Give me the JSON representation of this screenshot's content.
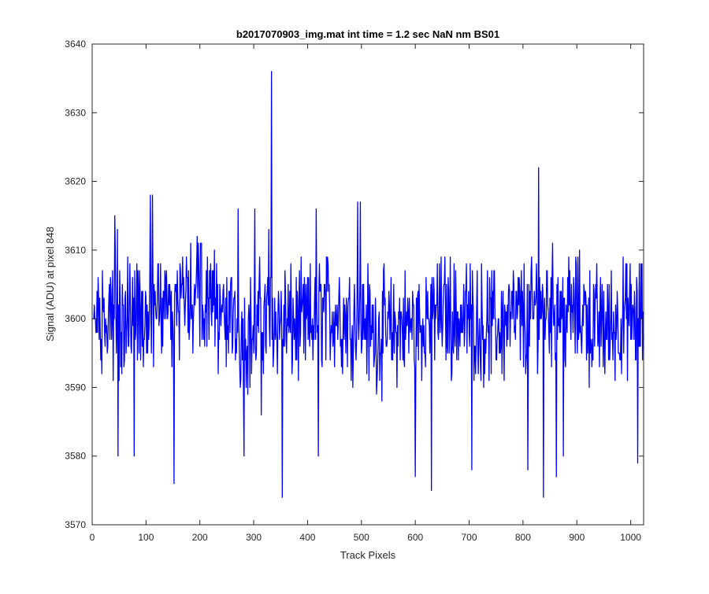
{
  "chart_data": {
    "type": "line",
    "title": "b2017070903_img.mat int time = 1.2 sec  NaN nm BS01",
    "xlabel": "Track Pixels",
    "ylabel": "Signal (ADU) at pixel 848",
    "xlim": [
      0,
      1024
    ],
    "ylim": [
      3570,
      3640
    ],
    "xticks": [
      0,
      100,
      200,
      300,
      400,
      500,
      600,
      700,
      800,
      900,
      1000
    ],
    "yticks": [
      3570,
      3580,
      3590,
      3600,
      3610,
      3620,
      3630,
      3640
    ],
    "grid": false,
    "series": [
      {
        "name": "",
        "color": "#0000ff",
        "x_start": 1,
        "x_step": 1,
        "baseline_values": [
          3600,
          3599,
          3602,
          3603,
          3601,
          3598,
          3600,
          3599,
          3601,
          3600,
          3598,
          3599,
          3601,
          3600,
          3599,
          3600,
          3602,
          3601,
          3599,
          3600
        ],
        "noise_amplitude": 6.5,
        "random_seed": 848,
        "n_points": 1024,
        "values_notes": "",
        "peaks": [
          {
            "x": 333,
            "y": 3636
          },
          {
            "x": 829,
            "y": 3622
          },
          {
            "x": 108,
            "y": 3618
          },
          {
            "x": 112,
            "y": 3618
          },
          {
            "x": 42,
            "y": 3615
          },
          {
            "x": 47,
            "y": 3613
          },
          {
            "x": 493,
            "y": 3617
          },
          {
            "x": 498,
            "y": 3617
          },
          {
            "x": 271,
            "y": 3616
          },
          {
            "x": 302,
            "y": 3616
          },
          {
            "x": 416,
            "y": 3616
          },
          {
            "x": 328,
            "y": 3613
          }
        ],
        "dips": [
          {
            "x": 152,
            "y": 3576
          },
          {
            "x": 314,
            "y": 3586
          },
          {
            "x": 353,
            "y": 3574
          },
          {
            "x": 838,
            "y": 3574
          },
          {
            "x": 630,
            "y": 3575
          },
          {
            "x": 600,
            "y": 3577
          },
          {
            "x": 48,
            "y": 3580
          },
          {
            "x": 78,
            "y": 3580
          },
          {
            "x": 282,
            "y": 3580
          },
          {
            "x": 420,
            "y": 3580
          },
          {
            "x": 705,
            "y": 3578
          },
          {
            "x": 809,
            "y": 3578
          },
          {
            "x": 1013,
            "y": 3579
          },
          {
            "x": 862,
            "y": 3577
          },
          {
            "x": 875,
            "y": 3580
          }
        ]
      }
    ]
  }
}
